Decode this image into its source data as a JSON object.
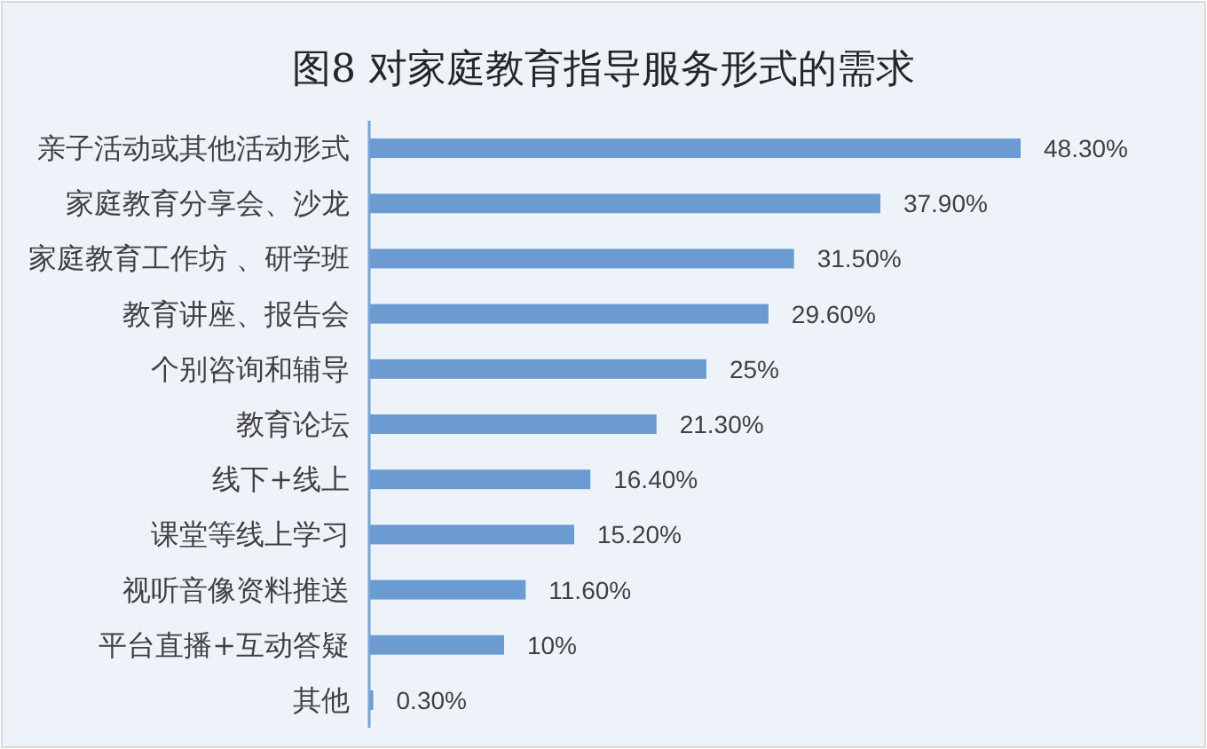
{
  "chart_data": {
    "type": "bar",
    "orientation": "horizontal",
    "title": "图8 对家庭教育指导服务形式的需求",
    "categories": [
      "亲子活动或其他活动形式",
      "家庭教育分享会、沙龙",
      "家庭教育工作坊 、研学班",
      "教育讲座、报告会",
      "个别咨询和辅导",
      "教育论坛",
      "线下+线上",
      "课堂等线上学习",
      "视听音像资料推送",
      "平台直播+互动答疑",
      "其他"
    ],
    "values": [
      48.3,
      37.9,
      31.5,
      29.6,
      25,
      21.3,
      16.4,
      15.2,
      11.6,
      10,
      0.3
    ],
    "value_labels": [
      "48.30%",
      "37.90%",
      "31.50%",
      "29.60%",
      "25%",
      "21.30%",
      "16.40%",
      "15.20%",
      "11.60%",
      "10%",
      "0.30%"
    ],
    "color": "#6b9bd1",
    "tick_labels": "y"
  }
}
